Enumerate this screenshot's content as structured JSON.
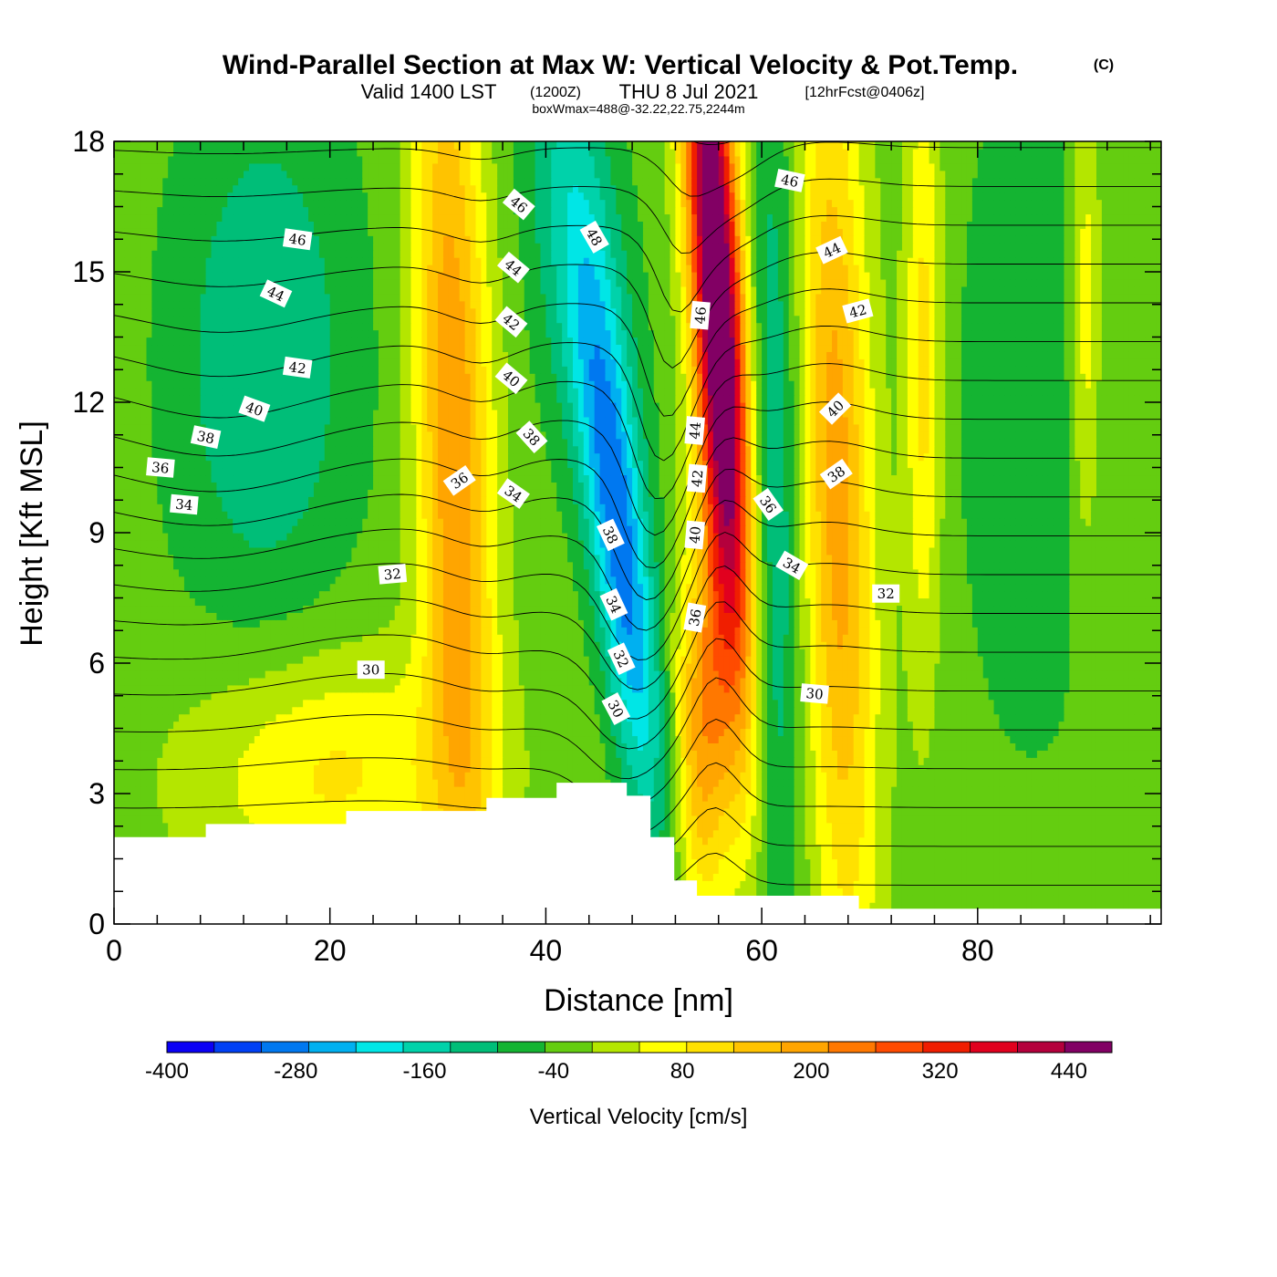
{
  "title": {
    "main": "Wind-Parallel Section at Max W: Vertical Velocity & Pot.Temp.",
    "copyright": "(C)",
    "valid_a": "Valid 1400 LST",
    "valid_z": "(1200Z)",
    "valid_b": "THU 8 Jul 2021",
    "fcst": "[12hrFcst@0406z]",
    "boxwmax": "boxWmax=488@-32.22,22.75,2244m"
  },
  "chart_data": {
    "type": "heatmap",
    "xlabel": "Distance [nm]",
    "ylabel": "Height [Kft MSL]",
    "xlim": [
      0,
      97
    ],
    "ylim": [
      0,
      18
    ],
    "x_ticks": [
      0,
      20,
      40,
      60,
      80
    ],
    "y_ticks": [
      0,
      3,
      6,
      9,
      12,
      15,
      18
    ],
    "colorbar": {
      "label": "Vertical Velocity [cm/s]",
      "min": -400,
      "max": 480,
      "step": 40,
      "tick_values": [
        -400,
        -280,
        -160,
        -40,
        80,
        200,
        320,
        440
      ],
      "tick_labels": [
        "-400",
        "-280",
        "-160",
        "-40",
        "80",
        "200",
        "320",
        "440"
      ],
      "colors": [
        "#0a00f5",
        "#0040f5",
        "#0078f0",
        "#00b0f0",
        "#00e6e6",
        "#00d2aa",
        "#00be78",
        "#14b432",
        "#64cd10",
        "#b4e600",
        "#ffff00",
        "#ffe100",
        "#ffc300",
        "#ffa500",
        "#ff7800",
        "#ff4b00",
        "#f01e00",
        "#e1001e",
        "#b4003c",
        "#820064"
      ]
    },
    "terrain_kft": [
      [
        0,
        2.0
      ],
      [
        8.5,
        2.0
      ],
      [
        8.5,
        2.3
      ],
      [
        21.5,
        2.3
      ],
      [
        21.5,
        2.6
      ],
      [
        34.5,
        2.6
      ],
      [
        34.5,
        2.9
      ],
      [
        41,
        2.9
      ],
      [
        41,
        3.25
      ],
      [
        47.5,
        3.25
      ],
      [
        47.5,
        2.95
      ],
      [
        49.7,
        2.95
      ],
      [
        49.7,
        2.0
      ],
      [
        51.9,
        2.0
      ],
      [
        51.9,
        1.0
      ],
      [
        54,
        1.0
      ],
      [
        54,
        0.65
      ],
      [
        69,
        0.65
      ],
      [
        69,
        0.35
      ],
      [
        97,
        0.35
      ]
    ],
    "w_field": {
      "base": -60,
      "blobs": [
        {
          "x": 56.0,
          "y": 14.0,
          "sx": 1.7,
          "sy": 6.5,
          "tilt": -0.22,
          "amp": 540
        },
        {
          "x": 54.5,
          "y": 4.5,
          "sx": 1.8,
          "sy": 3.0,
          "tilt": 0.0,
          "amp": 200
        },
        {
          "x": 47.0,
          "y": 8.5,
          "sx": 1.9,
          "sy": 4.5,
          "tilt": -0.45,
          "amp": -230
        },
        {
          "x": 43.0,
          "y": 15.5,
          "sx": 3.2,
          "sy": 4.0,
          "tilt": -0.4,
          "amp": -110
        },
        {
          "x": 61.0,
          "y": 9.0,
          "sx": 1.8,
          "sy": 8.0,
          "tilt": 0.0,
          "amp": -110
        },
        {
          "x": 31.5,
          "y": 11.0,
          "sx": 2.4,
          "sy": 8.0,
          "tilt": -0.1,
          "amp": 220
        },
        {
          "x": 67.0,
          "y": 10.0,
          "sx": 2.3,
          "sy": 8.0,
          "tilt": -0.1,
          "amp": 200
        },
        {
          "x": 14.0,
          "y": 13.0,
          "sx": 6.0,
          "sy": 4.5,
          "tilt": 0.0,
          "amp": -100
        },
        {
          "x": 85.0,
          "y": 12.0,
          "sx": 5.0,
          "sy": 6.0,
          "tilt": 0.0,
          "amp": -50
        },
        {
          "x": 75.0,
          "y": 13.0,
          "sx": 1.2,
          "sy": 5.0,
          "tilt": 0.0,
          "amp": 120
        },
        {
          "x": 90.0,
          "y": 14.0,
          "sx": 1.0,
          "sy": 4.0,
          "tilt": 0.0,
          "amp": 100
        },
        {
          "x": 20.0,
          "y": 3.5,
          "sx": 9.0,
          "sy": 2.0,
          "tilt": 0.0,
          "amp": 110
        }
      ]
    },
    "theta_contours": {
      "min": 28,
      "max": 49,
      "step": 1,
      "labels": [
        {
          "v": "46",
          "x": 17,
          "y": 15.75,
          "rot": 8
        },
        {
          "v": "44",
          "x": 15,
          "y": 14.5,
          "rot": 25
        },
        {
          "v": "42",
          "x": 17,
          "y": 12.8,
          "rot": 8
        },
        {
          "v": "40",
          "x": 13,
          "y": 11.85,
          "rot": 20
        },
        {
          "v": "38",
          "x": 8.5,
          "y": 11.2,
          "rot": 12
        },
        {
          "v": "36",
          "x": 4.3,
          "y": 10.5,
          "rot": 5
        },
        {
          "v": "34",
          "x": 6.5,
          "y": 9.65,
          "rot": 5
        },
        {
          "v": "32",
          "x": 25.8,
          "y": 8.05,
          "rot": -5
        },
        {
          "v": "30",
          "x": 23.8,
          "y": 5.85,
          "rot": 0
        },
        {
          "v": "36",
          "x": 32.0,
          "y": 10.2,
          "rot": -35
        },
        {
          "v": "34",
          "x": 37.0,
          "y": 9.9,
          "rot": 35
        },
        {
          "v": "46",
          "x": 37.5,
          "y": 16.55,
          "rot": 40
        },
        {
          "v": "44",
          "x": 37.0,
          "y": 15.1,
          "rot": 40
        },
        {
          "v": "42",
          "x": 36.8,
          "y": 13.85,
          "rot": 40
        },
        {
          "v": "40",
          "x": 36.8,
          "y": 12.55,
          "rot": 40
        },
        {
          "v": "38",
          "x": 38.7,
          "y": 11.2,
          "rot": 48
        },
        {
          "v": "48",
          "x": 44.5,
          "y": 15.8,
          "rot": 60
        },
        {
          "v": "38",
          "x": 46.0,
          "y": 8.95,
          "rot": 65
        },
        {
          "v": "34",
          "x": 46.3,
          "y": 7.35,
          "rot": 65
        },
        {
          "v": "32",
          "x": 47.0,
          "y": 6.1,
          "rot": 65
        },
        {
          "v": "30",
          "x": 46.5,
          "y": 4.95,
          "rot": 62
        },
        {
          "v": "46",
          "x": 54.3,
          "y": 14.0,
          "rot": -85
        },
        {
          "v": "44",
          "x": 53.8,
          "y": 11.35,
          "rot": -85
        },
        {
          "v": "42",
          "x": 54.0,
          "y": 10.25,
          "rot": -85
        },
        {
          "v": "40",
          "x": 53.8,
          "y": 8.95,
          "rot": -85
        },
        {
          "v": "36",
          "x": 53.8,
          "y": 7.05,
          "rot": -80
        },
        {
          "v": "46",
          "x": 62.6,
          "y": 17.1,
          "rot": 12
        },
        {
          "v": "44",
          "x": 66.5,
          "y": 15.5,
          "rot": -25
        },
        {
          "v": "42",
          "x": 68.9,
          "y": 14.1,
          "rot": -15
        },
        {
          "v": "40",
          "x": 66.8,
          "y": 11.85,
          "rot": -45
        },
        {
          "v": "38",
          "x": 66.9,
          "y": 10.35,
          "rot": -35
        },
        {
          "v": "36",
          "x": 60.6,
          "y": 9.65,
          "rot": 55
        },
        {
          "v": "34",
          "x": 62.8,
          "y": 8.25,
          "rot": 30
        },
        {
          "v": "32",
          "x": 71.5,
          "y": 7.6,
          "rot": 0
        },
        {
          "v": "30",
          "x": 64.9,
          "y": 5.3,
          "rot": 5
        }
      ]
    }
  }
}
